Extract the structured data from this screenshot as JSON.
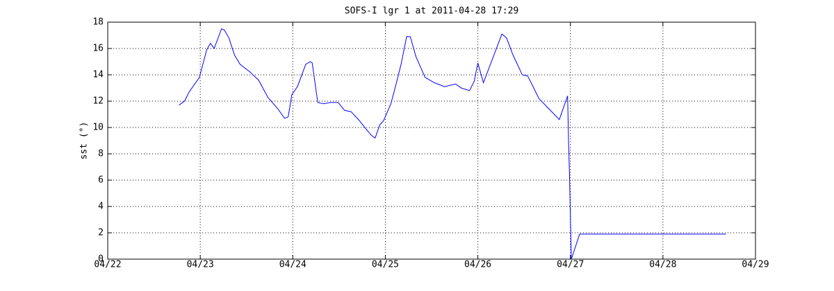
{
  "chart_data": {
    "type": "line",
    "title": "SOFS-I lgr 1 at 2011-04-28 17:29",
    "y_label": "sst (°)",
    "x": [
      22.77,
      22.83,
      22.88,
      22.99,
      23.07,
      23.11,
      23.15,
      23.23,
      23.26,
      23.31,
      23.37,
      23.43,
      23.54,
      23.63,
      23.73,
      23.84,
      23.91,
      23.95,
      23.99,
      24.05,
      24.14,
      24.19,
      24.21,
      24.27,
      24.33,
      24.41,
      24.49,
      24.56,
      24.63,
      24.71,
      24.79,
      24.85,
      24.89,
      24.94,
      24.98,
      25.06,
      25.12,
      25.17,
      25.23,
      25.27,
      25.33,
      25.43,
      25.53,
      25.64,
      25.76,
      25.82,
      25.91,
      25.96,
      26.0,
      26.06,
      26.26,
      26.31,
      26.38,
      26.48,
      26.54,
      26.66,
      26.77,
      26.88,
      26.97,
      26.98,
      26.99,
      27.01,
      27.1,
      28.68
    ],
    "series": [
      {
        "color": "#0000ff",
        "values": [
          11.7,
          12.0,
          12.7,
          13.8,
          15.9,
          16.4,
          16.0,
          17.5,
          17.4,
          16.8,
          15.5,
          14.8,
          14.2,
          13.6,
          12.3,
          11.4,
          10.7,
          10.8,
          12.5,
          13.1,
          14.8,
          15.0,
          14.9,
          11.9,
          11.8,
          11.9,
          11.9,
          11.3,
          11.2,
          10.6,
          9.9,
          9.4,
          9.2,
          10.2,
          10.5,
          11.8,
          13.4,
          14.8,
          16.9,
          16.9,
          15.4,
          13.8,
          13.4,
          13.1,
          13.3,
          13.0,
          12.8,
          13.5,
          14.9,
          13.4,
          17.1,
          16.8,
          15.5,
          14.0,
          13.9,
          12.2,
          11.4,
          10.6,
          12.4,
          8.9,
          6.5,
          0,
          1.9,
          1.9
        ]
      }
    ],
    "xlim": [
      22,
      29
    ],
    "xticks": [
      {
        "value": 22,
        "label": "04/22"
      },
      {
        "value": 23,
        "label": "04/23"
      },
      {
        "value": 24,
        "label": "04/24"
      },
      {
        "value": 25,
        "label": "04/25"
      },
      {
        "value": 26,
        "label": "04/26"
      },
      {
        "value": 27,
        "label": "04/27"
      },
      {
        "value": 28,
        "label": "04/28"
      },
      {
        "value": 29,
        "label": "04/29"
      }
    ],
    "ylim": [
      0,
      18
    ],
    "yticks": [
      0,
      2,
      4,
      6,
      8,
      10,
      12,
      14,
      16,
      18
    ],
    "grid": true
  }
}
